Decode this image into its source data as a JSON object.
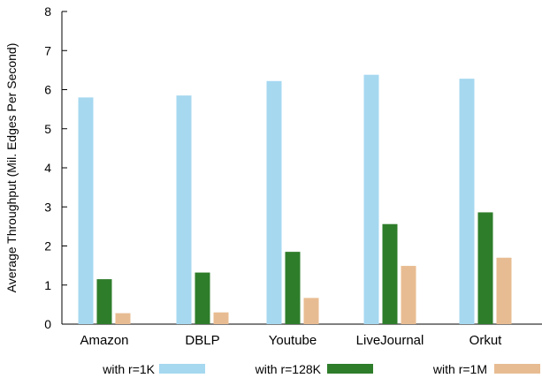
{
  "chart_data": {
    "type": "bar",
    "title": "",
    "xlabel": "",
    "ylabel": "Average Throughput (Mil. Edges Per Second)",
    "ylim": [
      0,
      8
    ],
    "yticks": [
      "0",
      "1",
      "2",
      "3",
      "4",
      "5",
      "6",
      "7",
      "8"
    ],
    "categories": [
      "Amazon",
      "DBLP",
      "Youtube",
      "LiveJournal",
      "Orkut"
    ],
    "series": [
      {
        "name": "with r=1K",
        "color": "#a6d8f0",
        "values": [
          5.8,
          5.85,
          6.22,
          6.38,
          6.28
        ]
      },
      {
        "name": "with r=128K",
        "color": "#2e7d2a",
        "values": [
          1.15,
          1.32,
          1.85,
          2.56,
          2.86
        ]
      },
      {
        "name": "with r=1M",
        "color": "#e8bc92",
        "values": [
          0.28,
          0.3,
          0.67,
          1.49,
          1.7
        ]
      }
    ],
    "grid": false,
    "legend": "bottom"
  }
}
